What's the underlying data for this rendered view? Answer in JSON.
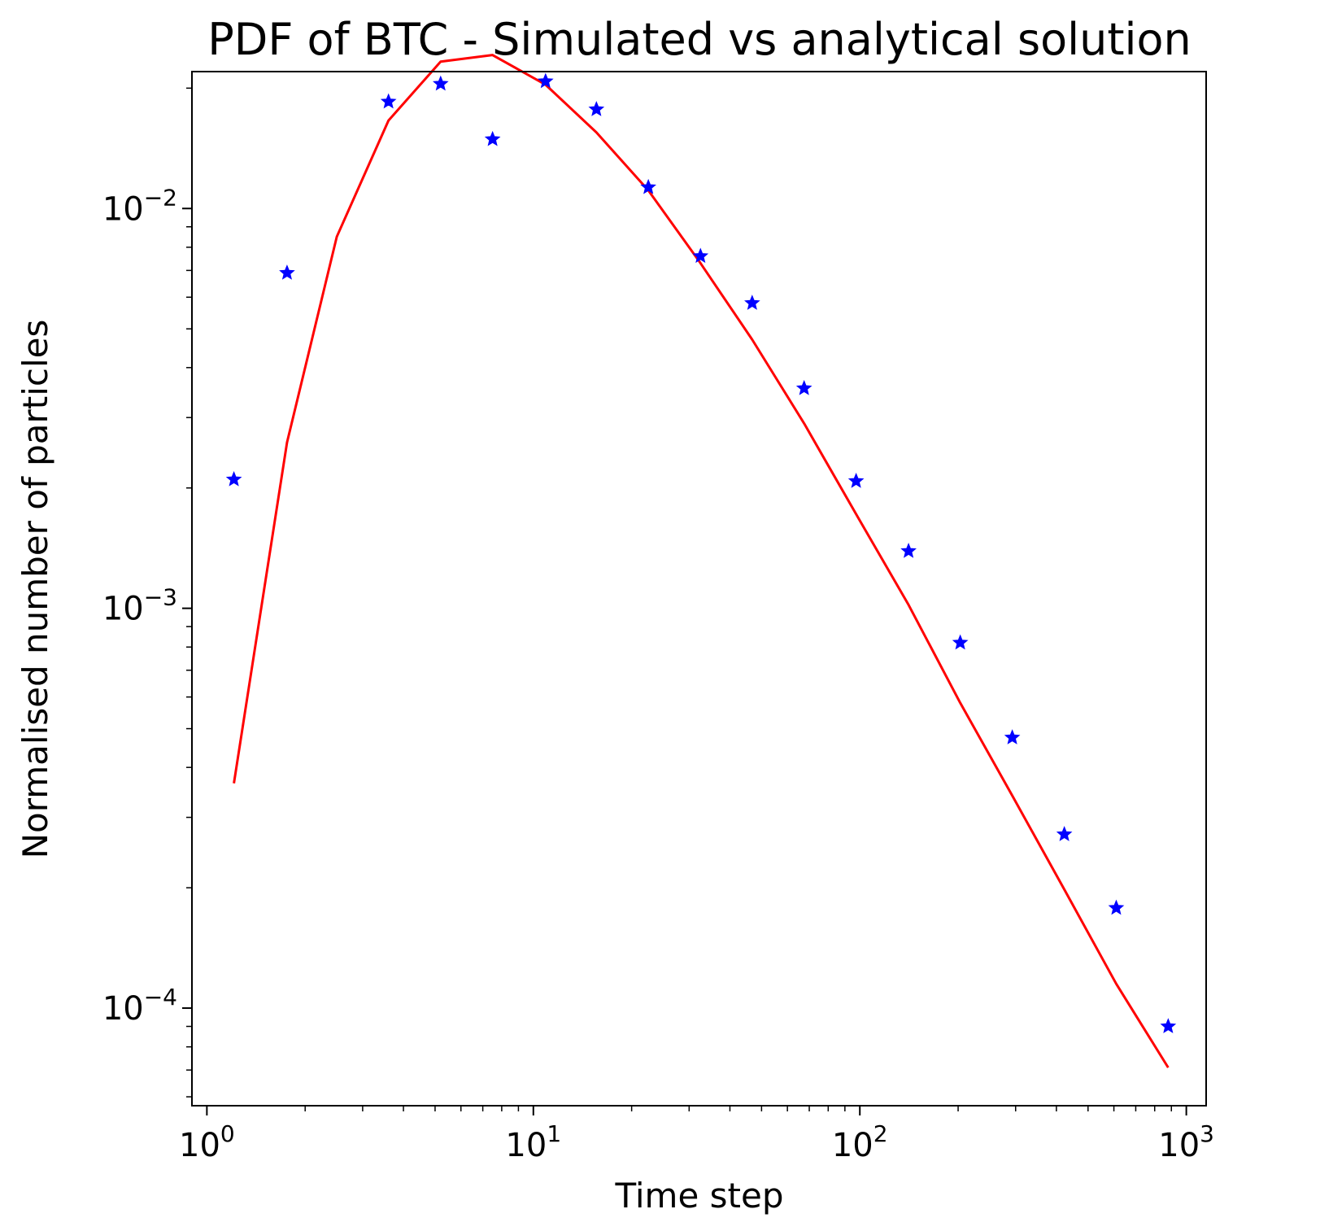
{
  "chart_data": {
    "type": "line",
    "title": "PDF of BTC - Simulated vs analytical solution",
    "xlabel": "Time step",
    "ylabel": "Normalised number of particles",
    "xscale": "log",
    "yscale": "log",
    "xlim": [
      0.9,
      1150
    ],
    "ylim": [
      5.7e-05,
      0.022
    ],
    "grid": false,
    "x_major_ticks": [
      {
        "value": 1,
        "base": "10",
        "exp": "0"
      },
      {
        "value": 10,
        "base": "10",
        "exp": "1"
      },
      {
        "value": 100,
        "base": "10",
        "exp": "2"
      },
      {
        "value": 1000,
        "base": "10",
        "exp": "3"
      }
    ],
    "y_major_ticks": [
      {
        "value": 0.0001,
        "base": "10",
        "exp": "−4"
      },
      {
        "value": 0.001,
        "base": "10",
        "exp": "−3"
      },
      {
        "value": 0.01,
        "base": "10",
        "exp": "−2"
      }
    ],
    "series": [
      {
        "style": "line",
        "color": "#ff0000",
        "x": [
          1.21,
          1.76,
          2.5,
          3.6,
          5.2,
          7.5,
          10.9,
          15.6,
          22.5,
          32.5,
          46.8,
          67.5,
          97.4,
          141,
          203,
          293,
          423,
          610,
          880
        ],
        "y": [
          0.000365,
          0.0026,
          0.0085,
          0.0166,
          0.0233,
          0.0242,
          0.0204,
          0.0155,
          0.0111,
          0.0073,
          0.0047,
          0.0029,
          0.00172,
          0.00102,
          0.00058,
          0.00034,
          0.000198,
          0.000115,
          7.1e-05
        ]
      },
      {
        "style": "scatter",
        "marker": "star",
        "color": "#0000ff",
        "x": [
          1.21,
          1.76,
          2.5,
          3.6,
          5.2,
          7.5,
          10.9,
          15.6,
          22.5,
          32.5,
          46.8,
          67.5,
          97.4,
          141,
          203,
          293,
          423,
          610,
          880
        ],
        "y": [
          0.0021,
          0.0069,
          null,
          0.0185,
          0.0205,
          0.0149,
          0.0208,
          0.0177,
          0.0113,
          0.0076,
          0.0058,
          0.00355,
          0.00208,
          0.00139,
          0.00082,
          0.000475,
          0.000272,
          0.000178,
          9e-05
        ]
      }
    ]
  }
}
